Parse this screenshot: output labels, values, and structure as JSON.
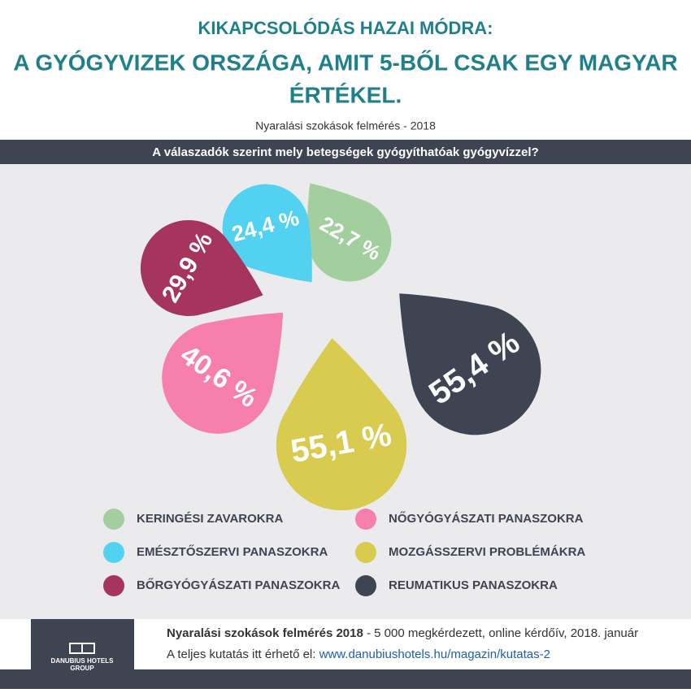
{
  "header": {
    "title": [
      "KIKAPCSOLÓDÁS HAZAI MÓDRA:",
      "A GYÓGYVIZEK ORSZÁGA, AMIT 5-BŐL CSAK EGY MAGYAR",
      "ÉRTÉKEL."
    ],
    "subtitle": "Nyaralási szokások felmérés - 2018"
  },
  "chart_data": {
    "type": "drop",
    "title": "A válaszadók szerint mely betegségek gyógyíthatóak gyógyvízzel?",
    "categories": [
      "KERINGÉSI ZAVAROKRA",
      "EMÉSZTŐSZERVI PANASZOKRA",
      "BŐRGYÓGYÁSZATI PANASZOKRA",
      "NŐGYÓGYÁSZATI PANASZOKRA",
      "MOZGÁSSZERVI PROBLÉMÁKRA",
      "REUMATIKUS PANASZOKRA"
    ],
    "values": [
      22.7,
      24.4,
      29.9,
      40.6,
      55.1,
      55.4
    ],
    "value_labels": [
      "22,7 %",
      "24,4 %",
      "29,9 %",
      "40,6 %",
      "55,1 %",
      "55,4 %"
    ],
    "colors": [
      "#a3cf9f",
      "#52d2f0",
      "#a6355e",
      "#f77fae",
      "#d8cb50",
      "#3f4452"
    ]
  },
  "footer": {
    "logo": [
      "DANUBIUS HOTELS",
      "GROUP"
    ],
    "line1": [
      "Nyaralási szokások felmérés 2018",
      " - 5 000 megkérdezett, online kérdőív, 2018. január"
    ],
    "line2": [
      "A teljes kutatás itt érhető el: ",
      "www.danubiushotels.hu/magazin/kutatas-2"
    ]
  }
}
